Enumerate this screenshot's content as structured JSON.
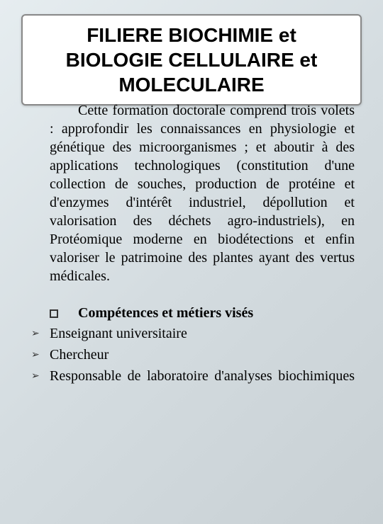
{
  "title": "FILIERE BIOCHIMIE et BIOLOGIE CELLULAIRE et MOLECULAIRE",
  "body_paragraph": "Cette formation doctorale comprend trois volets : approfondir les connaissances en physiologie et génétique des microorganismes ; et aboutir à des applications technologiques (constitution d'une collection de souches, production de protéine et  d'enzymes d'intérêt industriel, dépollution et valorisation des déchets agro-industriels), en Protéomique moderne en biodétections et enfin valoriser le patrimoine des plantes ayant des vertus médicales.",
  "subheading": "Compétences et métiers visés",
  "items": [
    "Enseignant universitaire",
    "Chercheur",
    "Responsable de laboratoire d'analyses biochimiques"
  ],
  "colors": {
    "bg_gradient_start": "#e6edf0",
    "bg_gradient_end": "#c8d0d4",
    "title_box_bg": "#ffffff",
    "title_box_border": "#888888",
    "text": "#000000",
    "bullet": "#333333"
  },
  "typography": {
    "title_fontsize": 28,
    "title_weight": "bold",
    "body_fontsize": 20,
    "subheading_fontsize": 20,
    "subheading_weight": "bold",
    "item_fontsize": 20
  }
}
